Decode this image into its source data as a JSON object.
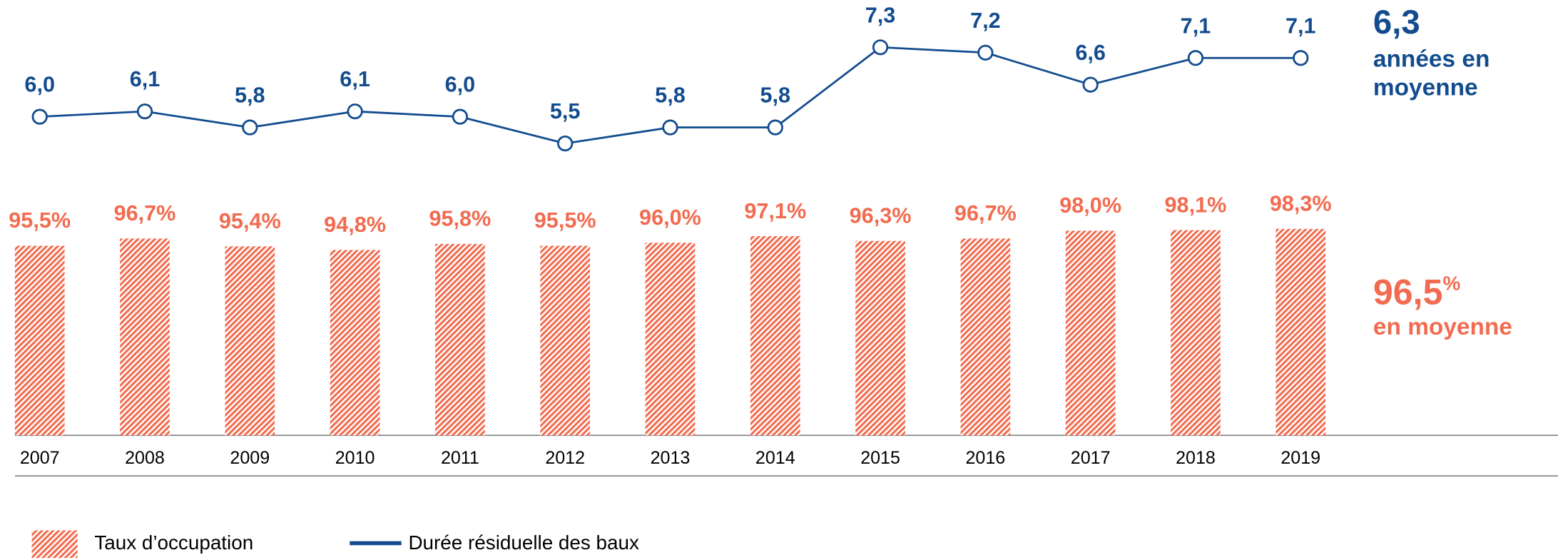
{
  "chart_data": {
    "type": "combo",
    "categories": [
      "2007",
      "2008",
      "2009",
      "2010",
      "2011",
      "2012",
      "2013",
      "2014",
      "2015",
      "2016",
      "2017",
      "2018",
      "2019"
    ],
    "series": [
      {
        "name": "Taux d’occupation",
        "type": "bar",
        "color": "#f26b4f",
        "values": [
          95.5,
          96.7,
          95.4,
          94.8,
          95.8,
          95.5,
          96.0,
          97.1,
          96.3,
          96.7,
          98.0,
          98.1,
          98.3
        ],
        "value_labels": [
          "95,5%",
          "96,7%",
          "95,4%",
          "94,8%",
          "95,8%",
          "95,5%",
          "96,0%",
          "97,1%",
          "96,3%",
          "96,7%",
          "98,0%",
          "98,1%",
          "98,3%"
        ]
      },
      {
        "name": "Durée résiduelle des baux",
        "type": "line",
        "axis": "y2",
        "color": "#124c8e",
        "values": [
          6.0,
          6.1,
          5.8,
          6.1,
          6.0,
          5.5,
          5.8,
          5.8,
          7.3,
          7.2,
          6.6,
          7.1,
          7.1
        ],
        "value_labels": [
          "6,0",
          "6,1",
          "5,8",
          "6,1",
          "6,0",
          "5,5",
          "5,8",
          "5,8",
          "7,3",
          "7,2",
          "6,6",
          "7,1",
          "7,1"
        ]
      }
    ],
    "ylim": [
      64,
      100
    ],
    "y2lim": [
      5,
      8
    ],
    "annotations": {
      "line_average": "6,3",
      "line_average_text": [
        "années en",
        "moyenne"
      ],
      "bar_average": "96,5",
      "bar_average_unit": "%",
      "bar_average_text": "en moyenne"
    }
  }
}
